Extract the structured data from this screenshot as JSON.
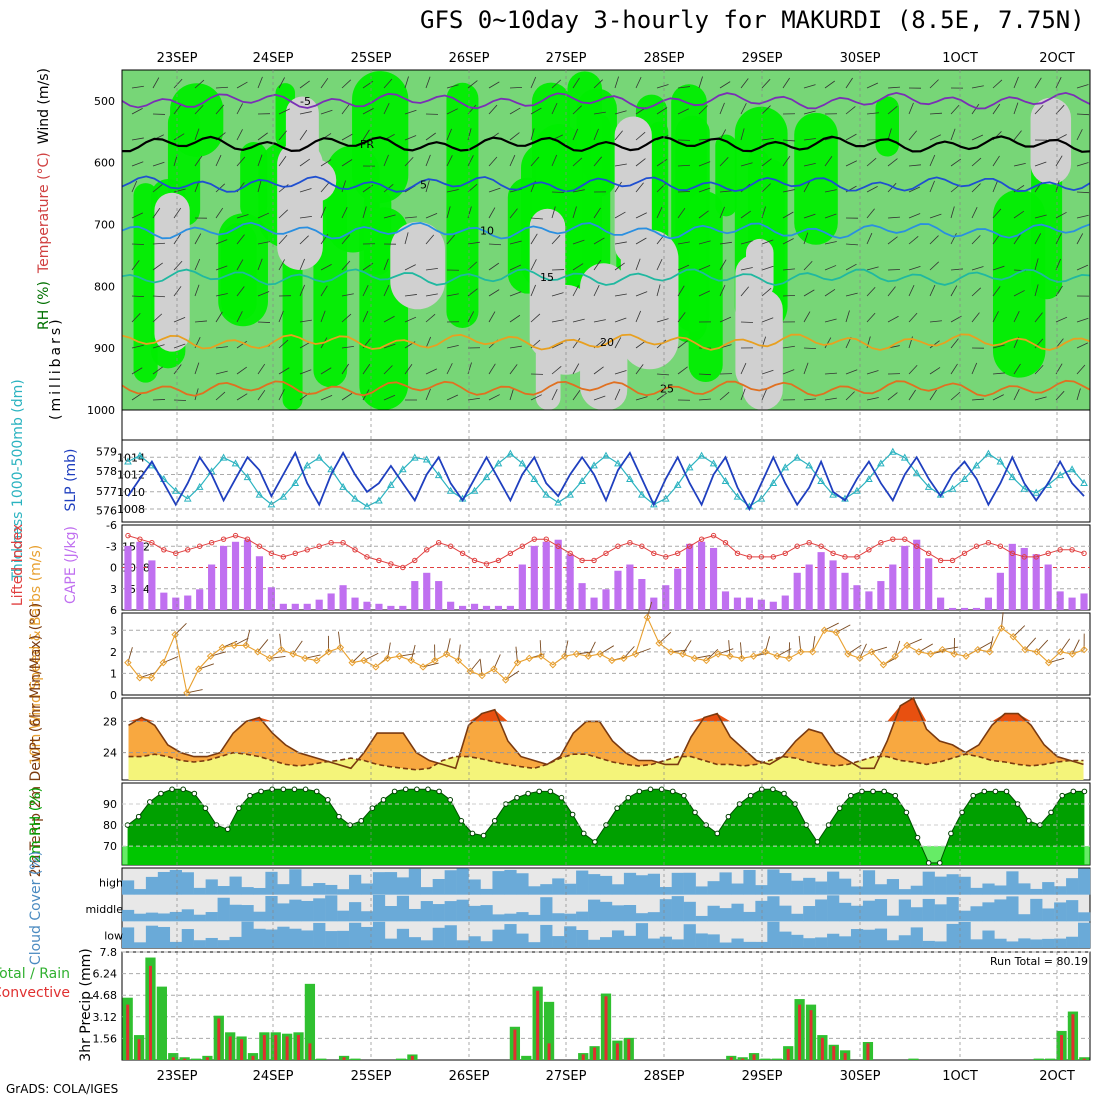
{
  "title": "GFS 0~10day 3-hourly for MAKURDI (8.5E, 7.75N)",
  "credit": "GrADS: COLA/IGES",
  "dates": [
    "23SEP",
    "24SEP",
    "25SEP",
    "26SEP",
    "27SEP",
    "28SEP",
    "29SEP",
    "30SEP",
    "1OCT",
    "2OCT"
  ],
  "colors": {
    "rh_high": "#00ee00",
    "rh_mid": "#77d677",
    "rh_low": "#d0d0d0",
    "slp": "#1f3fbf",
    "thickness": "#2bb3c0",
    "lifted": "#e04040",
    "cape": "#c070f0",
    "wind10": "#e8a030",
    "temp_fill": "#f8a840",
    "temp_hot": "#e85010",
    "dewpt_fill": "#f4f47a",
    "rh2m": "#00a000",
    "cloud": "#6aaad8",
    "cloud_bg": "#e8e8e8",
    "precip_total": "#30c030",
    "precip_conv": "#e03030"
  },
  "chart_data": [
    {
      "type": "heatmap",
      "name": "Upper-air cross section",
      "ylabel": "(millibars)",
      "legend_labels": [
        "RH (%)",
        "Temperature (°C)",
        "Wind (m/s)"
      ],
      "y_ticks": [
        500,
        600,
        700,
        800,
        900,
        1000
      ],
      "ylim": [
        1000,
        450
      ],
      "isotherms": [
        {
          "label": "-5",
          "level": 500,
          "color": "#7a2fb5"
        },
        {
          "label": "FR",
          "level": 570,
          "color": "#000000"
        },
        {
          "label": "5",
          "level": 635,
          "color": "#1f4fd0"
        },
        {
          "label": "10",
          "level": 710,
          "color": "#2a8fe0"
        },
        {
          "label": "15",
          "level": 785,
          "color": "#20b8a0"
        },
        {
          "label": "20",
          "level": 890,
          "color": "#e8a020"
        },
        {
          "label": "25",
          "level": 965,
          "color": "#e07020"
        }
      ],
      "contour_labels_shown": [
        "-5",
        "FR",
        "5",
        "10",
        "15",
        "15",
        "20",
        "20",
        "0"
      ]
    },
    {
      "type": "line",
      "name": "SLP and Thickness",
      "ylabel_left": "Thickness 1000-500mb (dm)",
      "ylabel_right": "SLP (mb)",
      "left_ticks": [
        576,
        577,
        578,
        579
      ],
      "right_ticks": [
        1008,
        1010,
        1012,
        1014
      ],
      "slp": [
        1009.5,
        1011.5,
        1013.5,
        1011,
        1008.5,
        1011,
        1014,
        1012,
        1009,
        1011.5,
        1014,
        1012.5,
        1009.5,
        1012,
        1014.5,
        1011,
        1008.5,
        1012,
        1014.5,
        1012,
        1010,
        1011,
        1013,
        1011,
        1009,
        1012,
        1014,
        1011,
        1009,
        1011.5,
        1014,
        1011.5,
        1009,
        1012,
        1014,
        1011,
        1009.5,
        1012,
        1014,
        1012,
        1009,
        1012.5,
        1014.5,
        1011.5,
        1008.5,
        1011.5,
        1014,
        1011,
        1008.5,
        1012,
        1014,
        1010.5,
        1008,
        1011,
        1014,
        1011,
        1008.5,
        1010.5,
        1013.5,
        1010,
        1009,
        1011.5,
        1013.5,
        1011,
        1009,
        1012,
        1014,
        1011.5,
        1009.5,
        1012,
        1013.5,
        1011.5,
        1008.5,
        1011,
        1014,
        1011,
        1009,
        1011,
        1013.5,
        1011,
        1009.5
      ],
      "thickness": [
        578.5,
        578.8,
        578.3,
        577.6,
        577,
        576.6,
        577.2,
        578,
        578.7,
        578.4,
        577.7,
        576.8,
        576.3,
        576.7,
        577.4,
        578.3,
        578.7,
        578.1,
        577.2,
        576.6,
        576.2,
        576.5,
        577.3,
        578.1,
        578.7,
        578.6,
        577.8,
        577,
        576.6,
        577,
        577.7,
        578.4,
        578.9,
        578.4,
        577.6,
        576.8,
        576.4,
        576.8,
        577.5,
        578.3,
        578.8,
        578.4,
        577.6,
        576.8,
        576.3,
        576.6,
        577.3,
        578.2,
        578.8,
        578.4,
        577.5,
        576.7,
        576.2,
        576.6,
        577.4,
        578.2,
        578.7,
        578.3,
        577.5,
        576.8,
        576.6,
        577,
        577.6,
        578.4,
        579,
        578.7,
        577.9,
        577.2,
        576.8,
        577.1,
        577.6,
        578.3,
        578.9,
        578.5,
        577.7,
        577.1,
        576.9,
        577.3,
        577.8,
        578.1,
        577.4
      ]
    },
    {
      "type": "bar",
      "name": "Lifted Index and CAPE",
      "ylabel_left": "Lifted Index",
      "ylabel_right": "CAPE (J/kg)",
      "left_ticks": [
        -6,
        -3,
        0,
        3,
        6
      ],
      "right_ticks": [
        514,
        1028,
        1542
      ],
      "cape": [
        1550,
        1650,
        1200,
        420,
        300,
        350,
        500,
        1100,
        1550,
        1650,
        1700,
        1300,
        550,
        150,
        150,
        150,
        250,
        400,
        600,
        300,
        200,
        150,
        100,
        100,
        700,
        900,
        700,
        200,
        100,
        150,
        100,
        100,
        100,
        1100,
        1550,
        1650,
        1700,
        1350,
        650,
        300,
        500,
        950,
        1100,
        750,
        300,
        600,
        1000,
        1600,
        1650,
        1500,
        450,
        300,
        300,
        250,
        200,
        350,
        900,
        1100,
        1400,
        1200,
        900,
        600,
        450,
        700,
        1100,
        1550,
        1700,
        1250,
        300,
        50,
        50,
        50,
        300,
        900,
        1600,
        1500,
        1350,
        1100,
        450,
        300,
        400
      ],
      "lifted_index": [
        -4.5,
        -4,
        -3.5,
        -2.5,
        -2,
        -2.5,
        -3,
        -3.5,
        -4,
        -4.5,
        -4,
        -3,
        -2,
        -1.5,
        -2,
        -2.5,
        -3,
        -3.5,
        -3.5,
        -2.5,
        -1.5,
        -1,
        -0.5,
        0,
        -1,
        -2.5,
        -3.5,
        -3,
        -2,
        -1,
        -0.5,
        -1,
        -2,
        -3,
        -4,
        -4,
        -3,
        -2,
        -1,
        -1,
        -2,
        -3,
        -3.5,
        -3,
        -2,
        -1.5,
        -2,
        -3,
        -4,
        -4.5,
        -3.5,
        -2,
        -1.5,
        -1.5,
        -1.5,
        -2,
        -3,
        -3.5,
        -3,
        -2,
        -1.5,
        -1.5,
        -2.5,
        -3.5,
        -4,
        -4,
        -3,
        -2,
        -1,
        -1,
        -2,
        -3,
        -3.5,
        -3,
        -2,
        -1.5,
        -1.5,
        -2,
        -2.5,
        -2.5,
        -2
      ]
    },
    {
      "type": "line",
      "name": "10m Wind Speed and Barbs",
      "ylabel": "10m Wind Speed & Barbs (m/s)",
      "y_ticks": [
        0,
        1,
        2,
        3
      ],
      "ylim": [
        0,
        3.8
      ],
      "speed": [
        1.5,
        0.8,
        0.8,
        1.5,
        2.8,
        0.1,
        1.2,
        1.8,
        2.2,
        2.3,
        2.3,
        2.0,
        1.7,
        2.1,
        1.9,
        1.7,
        1.6,
        2.0,
        2.2,
        1.5,
        1.6,
        1.3,
        1.7,
        1.8,
        1.6,
        1.3,
        1.6,
        1.9,
        1.6,
        1.1,
        0.9,
        1.2,
        0.7,
        1.5,
        1.7,
        1.8,
        1.4,
        1.8,
        1.9,
        1.8,
        1.9,
        1.6,
        1.7,
        1.9,
        3.6,
        2.4,
        2.0,
        1.9,
        1.7,
        1.6,
        1.9,
        1.8,
        1.7,
        1.8,
        2.0,
        1.8,
        1.7,
        2.0,
        2.0,
        3.0,
        2.9,
        1.9,
        1.7,
        2.0,
        1.4,
        1.8,
        2.3,
        2.0,
        1.9,
        2.1,
        1.9,
        1.8,
        2.1,
        2.0,
        3.1,
        2.7,
        2.1,
        2.0,
        1.5,
        2.0,
        1.9,
        2.1
      ],
      "speed_note": "read off chart"
    },
    {
      "type": "area",
      "name": "2m Temp and DewPt",
      "ylabel": "2m Temp 2m DewPt (6hr Min/Max) (°C)",
      "y_ticks": [
        24,
        28
      ],
      "ylim": [
        20.5,
        31
      ],
      "temp": [
        27.5,
        28.5,
        27.5,
        25,
        24,
        23.5,
        23.5,
        24,
        26.5,
        28,
        28.5,
        26.5,
        25,
        24,
        23.5,
        23,
        22.5,
        22,
        24,
        26.5,
        26.5,
        26.5,
        24,
        23,
        22.5,
        22,
        27.5,
        29,
        29.5,
        25.5,
        23.5,
        23,
        22.5,
        23.5,
        26.5,
        28,
        28,
        25.5,
        24,
        23,
        23,
        22.5,
        22.5,
        26,
        28.5,
        29,
        26,
        24.5,
        23,
        22.5,
        23.5,
        25.5,
        27,
        26.5,
        24,
        23,
        22,
        22,
        25.5,
        30,
        31,
        27,
        25.5,
        25,
        24,
        25,
        27.5,
        29,
        29,
        27.5,
        25,
        23.5,
        23,
        22.5
      ],
      "dewpt": [
        23.5,
        23.5,
        23.8,
        23.5,
        23,
        22.8,
        23,
        23.5,
        24,
        23.8,
        23.5,
        23,
        22.5,
        22.3,
        22.5,
        22.8,
        23,
        23.3,
        23,
        22.5,
        22.2,
        22,
        21.8,
        22,
        23,
        23.5,
        23.5,
        23.2,
        22.8,
        22.5,
        22.2,
        22,
        22.5,
        23.3,
        23.8,
        23.8,
        23.3,
        22.8,
        22.5,
        22.3,
        22.5,
        23,
        23.5,
        23.5,
        23,
        22.5,
        22.5,
        22.3,
        22.5,
        23,
        23.5,
        23.3,
        22.8,
        22.5,
        22.3,
        22.5,
        23,
        23.5,
        23.5,
        23,
        22.8,
        22.5,
        22.8,
        23.3,
        23.8,
        23.5,
        23,
        22.8,
        22.5,
        22.3,
        22.5,
        22.8,
        23,
        23
      ]
    },
    {
      "type": "area",
      "name": "2m RH",
      "ylabel": "2m RH (%)",
      "y_ticks": [
        70,
        80,
        90
      ],
      "ylim": [
        61,
        100
      ],
      "rh": [
        80,
        84,
        91,
        95,
        97,
        97,
        95,
        88,
        80,
        78,
        88,
        94,
        96,
        97,
        97,
        97,
        97,
        96,
        92,
        84,
        80,
        82,
        88,
        92,
        96,
        97,
        97,
        97,
        96,
        92,
        82,
        76,
        75,
        82,
        90,
        93,
        95,
        96,
        96,
        93,
        85,
        76,
        72,
        80,
        88,
        93,
        96,
        97,
        97,
        96,
        94,
        86,
        80,
        76,
        84,
        90,
        94,
        97,
        97,
        95,
        90,
        80,
        72,
        80,
        88,
        94,
        96,
        96,
        96,
        94,
        86,
        74,
        62,
        62,
        76,
        86,
        94,
        96,
        96,
        96,
        90,
        82,
        80,
        86,
        94,
        96,
        96
      ]
    },
    {
      "type": "heatmap",
      "name": "Cloud Cover",
      "ylabel": "Cloud Cover (%)",
      "levels": [
        "high",
        "middle",
        "low"
      ]
    },
    {
      "type": "bar",
      "name": "3hr Precip",
      "ylabel": "3hr Precip (mm)",
      "series_labels": [
        "Total / Rain",
        "Convective"
      ],
      "y_ticks": [
        1.56,
        3.12,
        4.68,
        6.24,
        7.8
      ],
      "ylim": [
        0,
        7.8
      ],
      "run_total_label": "Run Total = 80.19",
      "total": [
        4.5,
        1.8,
        7.4,
        5.3,
        0.5,
        0.2,
        0.1,
        0.3,
        3.2,
        2.0,
        1.7,
        0.5,
        2.0,
        2.0,
        1.9,
        2.0,
        5.5,
        0.1,
        0,
        0.3,
        0.1,
        0,
        0,
        0,
        0.1,
        0.4,
        0,
        0,
        0,
        0,
        0,
        0,
        0,
        0,
        2.4,
        0.3,
        5.3,
        4.2,
        0,
        0,
        0.5,
        1.0,
        4.8,
        1.4,
        1.6,
        0,
        0,
        0,
        0,
        0,
        0,
        0,
        0,
        0.3,
        0.2,
        0.5,
        0.1,
        0.1,
        1.0,
        4.4,
        4.0,
        1.8,
        1.1,
        0.7,
        0,
        1.3,
        0,
        0,
        0,
        0.1,
        0,
        0,
        0,
        0,
        0,
        0,
        0,
        0,
        0,
        0,
        0.1,
        0.1,
        2.1,
        3.5,
        0.2
      ],
      "convective": [
        4.0,
        1.5,
        6.8,
        0,
        0.2,
        0.1,
        0,
        0.2,
        3.0,
        1.7,
        1.5,
        0.3,
        1.8,
        1.8,
        1.7,
        1.8,
        1.2,
        0,
        0,
        0.2,
        0,
        0,
        0,
        0,
        0,
        0.3,
        0,
        0,
        0,
        0,
        0,
        0,
        0,
        0,
        2.2,
        0,
        5.0,
        1.2,
        0,
        0,
        0.4,
        0.9,
        4.6,
        1.2,
        1.5,
        0,
        0,
        0,
        0,
        0,
        0,
        0,
        0,
        0.2,
        0.1,
        0.4,
        0,
        0,
        0.8,
        4.0,
        3.6,
        1.6,
        1.0,
        0.5,
        0,
        1.2,
        0,
        0,
        0,
        0,
        0,
        0,
        0,
        0,
        0,
        0,
        0,
        0,
        0,
        0,
        0,
        0,
        1.8,
        3.3,
        0.1
      ]
    }
  ]
}
